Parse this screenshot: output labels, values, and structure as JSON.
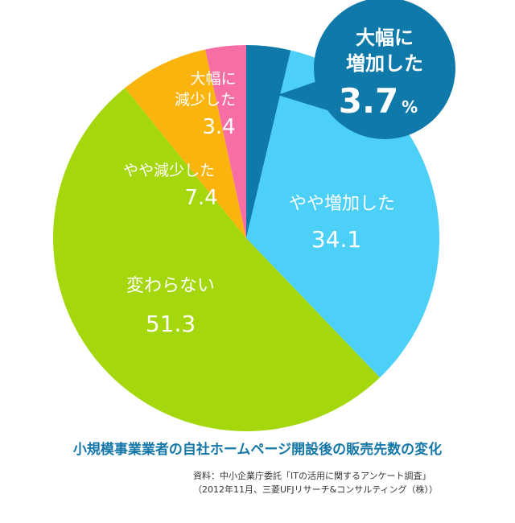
{
  "chart_data": {
    "type": "pie",
    "unit": "%",
    "slices": [
      {
        "label": "大幅に増加した",
        "value": 3.7,
        "value_text": "3.7",
        "color": "#0f7aaa"
      },
      {
        "label": "やや増加した",
        "value": 34.1,
        "value_text": "34.1",
        "color": "#4cd0f8"
      },
      {
        "label": "変わらない",
        "value": 51.3,
        "value_text": "51.3",
        "color": "#a5d70d"
      },
      {
        "label": "やや減少した",
        "value": 7.4,
        "value_text": "7.4",
        "color": "#fbb40e"
      },
      {
        "label": "大幅に減少した",
        "value": 3.4,
        "value_text": "3.4",
        "color": "#f66ea3"
      }
    ]
  },
  "labels": {
    "callout": {
      "line1": "大幅に",
      "line2": "増加した",
      "value": "3.7",
      "unit": "%"
    },
    "slight_increase": {
      "text": "やや増加した",
      "value": "34.1"
    },
    "unchanged": {
      "text": "変わらない",
      "value": "51.3"
    },
    "slight_decrease": {
      "text": "やや減少した",
      "value": "7.4"
    },
    "big_decrease": {
      "line1": "大幅に",
      "line2": "減少した",
      "value": "3.4"
    }
  },
  "caption": {
    "title": "小規模事業業者の自社ホームページ開設後の販売先数の変化",
    "source_line1": "資料：中小企業庁委託「ITの活用に関するアンケート調査」",
    "source_line2": "（2012年11月、三菱UFJリサーチ&コンサルティング（株））"
  }
}
